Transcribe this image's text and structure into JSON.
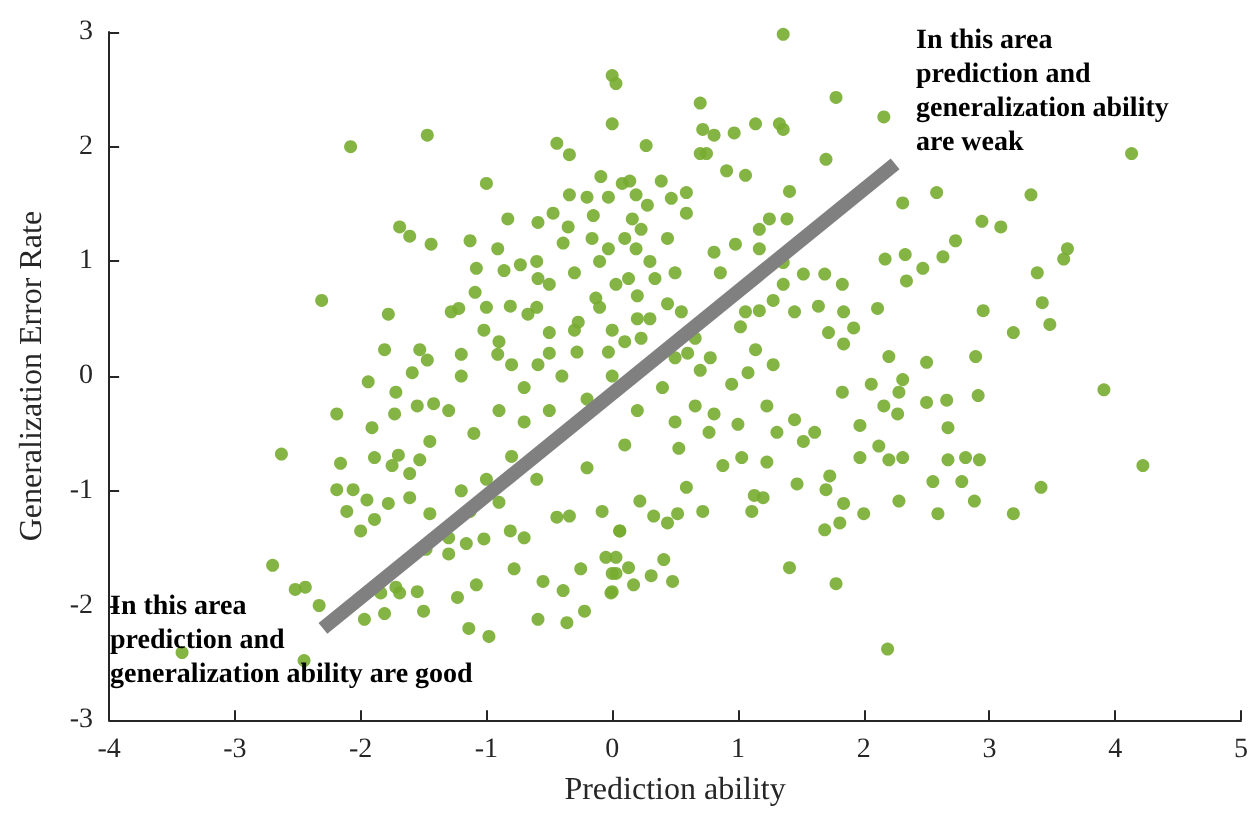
{
  "chart_data": {
    "type": "scatter",
    "xlabel": "Prediction ability",
    "ylabel": "Generalization Error Rate",
    "xlim": [
      -4,
      5
    ],
    "xticks": [
      -4,
      -3,
      -2,
      -1,
      0,
      1,
      2,
      3,
      4,
      5
    ],
    "ylim": [
      -3,
      3
    ],
    "yticks": [
      -3,
      -2,
      -1,
      0,
      1,
      2,
      3
    ],
    "marker": "circle",
    "annotations": [
      "In this area\nprediction and\ngeneralization ability\nare weak",
      "In this area\nprediction and\ngeneralization ability are good"
    ],
    "series": [
      {
        "color": "#77ac30",
        "x": [
          -2.08,
          -1.47,
          -2.31,
          0,
          0.03,
          0,
          1.36,
          -0.44,
          4.13,
          2.16,
          2.31,
          2.58,
          3.33,
          2.94,
          3.09,
          3.62,
          3.59,
          3.38,
          3.42,
          3.48,
          3.19,
          2.95,
          2.73,
          2.63,
          2.33,
          2.17,
          2.47,
          2.34,
          2.11,
          2.2,
          2.5,
          2.89,
          3.91,
          4.22,
          3.41,
          3.19,
          2.88,
          2.59,
          2.78,
          2.55,
          2.67,
          2.92,
          2.81,
          2.67,
          2.66,
          2.5,
          2.91,
          2.31,
          2.28,
          2.27,
          2.16,
          2.06,
          1.97,
          2.12,
          1.97,
          2.2,
          2.31,
          2.28,
          2.0,
          1.83,
          1.84,
          1.81,
          1.69,
          1.73,
          1.7,
          1.47,
          1.61,
          1.52,
          1.45,
          1.31,
          1.23,
          1.23,
          1.13,
          1.2,
          1.11,
          1.08,
          0.95,
          1.0,
          1.03,
          0.88,
          0.77,
          0.81,
          0.66,
          0.53,
          0.59,
          0.72,
          0.52,
          0.44,
          0.33,
          0.22,
          0.06,
          1.41,
          1.78,
          2.19,
          0.41,
          0.48,
          0.31,
          0.17,
          0.13,
          -0.01,
          -0.05,
          0.03,
          -2.63,
          -2.7,
          -2.52,
          -2.44,
          -2.33,
          -3.42,
          -2.45,
          -2.19,
          -2.16,
          -2.19,
          -2.11,
          -2.0,
          -2.06,
          -1.95,
          -1.89,
          -1.94,
          -1.91,
          -1.89,
          -1.78,
          -1.97,
          -1.81,
          -1.84,
          -1.72,
          -1.69,
          -1.5,
          -1.55,
          -1.72,
          -1.73,
          -1.7,
          -1.75,
          -1.61,
          -1.61,
          -1.55,
          -1.42,
          -1.59,
          -1.53,
          -1.45,
          -1.45,
          -1.3,
          -1.3,
          -1.48,
          -1.13,
          -1.16,
          -1.23,
          -1.14,
          -0.98,
          -1.08,
          -1.02,
          -0.81,
          -0.78,
          -0.7,
          -0.59,
          -0.55,
          -0.39,
          -0.36,
          -0.22,
          -0.25,
          -0.44,
          -0.34,
          0,
          0,
          0.03,
          -0.08,
          0.06,
          -1.69,
          -1.61,
          -1.44,
          -1.78,
          -1.81,
          -1.53,
          -1.47,
          -1.0,
          -0.83,
          -1.13,
          -0.91,
          -1.08,
          -0.86,
          -0.73,
          -1.28,
          -1.22,
          -1.02,
          -1.09,
          -1.2,
          -0.59,
          -0.47,
          -0.34,
          -0.2,
          -0.09,
          0.08,
          0.14,
          0.27,
          0.39,
          -0.03,
          0.19,
          0.28,
          -0.34,
          -0.39,
          -0.16,
          -0.03,
          0.19,
          -0.5,
          -0.59,
          -0.67,
          -0.5,
          -0.27,
          -0.13,
          0.03,
          0.2,
          0.34,
          0.44,
          -0.28,
          -0.59,
          -0.91,
          -0.81,
          -0.03,
          0.7,
          0.72,
          0.81,
          0.97,
          1.14,
          1.33,
          1.36,
          1.78,
          0.7,
          0.75,
          1.7,
          1.41,
          0.91,
          1.06,
          1.25,
          1.39,
          1.17,
          1.17,
          0.98,
          0.81,
          0.86,
          1.36,
          1.52,
          1.69,
          1.83,
          1.36,
          1.28,
          1.45,
          1.17,
          1.06,
          1.64,
          1.84,
          1.92,
          1.72,
          1.84,
          1.02,
          1.14,
          1.28,
          0.7,
          0.78,
          0.59,
          0.47,
          0.59,
          0.16,
          0.23,
          0.44,
          0.13,
          0.55,
          0.23,
          0.66,
          0.5,
          -0.9,
          -0.7,
          -0.5,
          -0.3,
          -0.1,
          0.1,
          0.3,
          0.5,
          -1.1,
          -0.8,
          -0.6,
          -0.2,
          0,
          0.2,
          0.4,
          -1.2,
          -1.0,
          -0.5,
          -0.3,
          -0.1,
          0.3,
          -0.6,
          -0.9,
          -1.3,
          0.6,
          -0.2,
          0.1,
          -0.7,
          -0.4,
          0.2,
          0,
          -0.8,
          -1.0,
          0.5,
          -0.35,
          -0.15,
          0.1,
          -0.6,
          -1.2,
          -0.9
        ],
        "values": [
          2.0,
          2.1,
          0.66,
          2.62,
          2.55,
          2.2,
          2.98,
          2.03,
          1.94,
          2.26,
          1.51,
          1.6,
          1.58,
          1.35,
          1.3,
          1.11,
          1.02,
          0.9,
          0.64,
          0.45,
          0.38,
          0.57,
          1.18,
          1.04,
          1.06,
          1.02,
          0.94,
          0.83,
          0.59,
          0.17,
          0.12,
          0.17,
          -0.12,
          -0.78,
          -0.97,
          -1.2,
          -1.09,
          -1.2,
          -0.92,
          -0.92,
          -0.73,
          -0.73,
          -0.71,
          -0.45,
          -0.21,
          -0.23,
          -0.17,
          -0.03,
          -0.14,
          -0.33,
          -0.26,
          -0.07,
          -0.43,
          -0.61,
          -0.71,
          -0.73,
          -0.71,
          -1.09,
          -1.2,
          -0.14,
          -1.11,
          -1.28,
          -1.34,
          -0.87,
          -0.99,
          -0.94,
          -0.49,
          -0.57,
          -0.38,
          -0.49,
          -0.26,
          -0.75,
          -1.04,
          -1.06,
          -1.18,
          0.03,
          -0.07,
          -0.42,
          -0.71,
          -0.78,
          -0.49,
          -0.33,
          -0.26,
          -0.63,
          -0.97,
          -1.18,
          -1.2,
          -1.28,
          -1.22,
          -1.09,
          -1.35,
          -1.67,
          -1.81,
          -2.38,
          -1.6,
          -1.79,
          -1.74,
          -1.82,
          -1.67,
          -1.89,
          -1.58,
          -1.72,
          -0.68,
          -1.65,
          -1.86,
          -1.84,
          -2.0,
          -2.41,
          -2.48,
          -0.33,
          -0.76,
          -0.99,
          -1.18,
          -1.35,
          -0.99,
          -1.08,
          -1.25,
          -0.05,
          -0.45,
          -0.71,
          -1.11,
          -2.12,
          -2.07,
          -1.89,
          -1.84,
          -1.89,
          -2.05,
          -1.88,
          -0.14,
          -0.33,
          -0.69,
          -0.78,
          -0.85,
          -1.06,
          -0.26,
          -0.24,
          0.03,
          -0.73,
          -0.57,
          -1.2,
          -1.55,
          -1.41,
          -1.51,
          -1.18,
          -1.46,
          -1.93,
          -2.2,
          -2.27,
          -1.82,
          -1.42,
          -1.35,
          -1.68,
          -1.41,
          -2.12,
          -1.79,
          -1.87,
          -2.15,
          -2.05,
          -1.68,
          -1.23,
          -1.22,
          -1.88,
          -1.72,
          -1.58,
          -1.18,
          -1.35,
          1.3,
          1.22,
          1.15,
          0.54,
          0.23,
          0.23,
          0.14,
          1.68,
          1.37,
          1.18,
          1.11,
          0.94,
          0.92,
          0.97,
          0.56,
          0.59,
          0.4,
          0.73,
          0.19,
          1.34,
          1.42,
          1.58,
          1.56,
          1.74,
          1.68,
          1.7,
          2.01,
          1.7,
          1.56,
          1.58,
          1.49,
          1.93,
          1.16,
          1.2,
          1.11,
          1.11,
          0.8,
          0.85,
          0.54,
          0.38,
          0.47,
          0.68,
          0.8,
          0.5,
          0.85,
          0.63,
          0.21,
          0.1,
          0.19,
          0.61,
          0.21,
          2.38,
          2.15,
          2.1,
          2.12,
          2.2,
          2.2,
          2.15,
          2.43,
          1.94,
          1.94,
          1.89,
          1.61,
          1.79,
          1.75,
          1.37,
          1.37,
          1.28,
          1.11,
          1.15,
          1.08,
          0.9,
          0.99,
          0.89,
          0.89,
          0.8,
          0.8,
          0.66,
          0.56,
          0.57,
          0.56,
          0.61,
          0.56,
          0.42,
          0.38,
          0.28,
          0.43,
          0.23,
          0.1,
          0.05,
          0.16,
          1.6,
          1.55,
          1.42,
          1.37,
          1.28,
          1.2,
          0.85,
          0.56,
          0.33,
          0.33,
          0.16,
          -0.3,
          -0.1,
          0.2,
          0.4,
          0.6,
          0.3,
          0.5,
          0.9,
          -0.5,
          -0.7,
          -0.9,
          -0.2,
          0,
          -0.3,
          -0.1,
          0.0,
          -0.9,
          -0.3,
          0.9,
          1.0,
          1.0,
          0.6,
          0.3,
          -0.3,
          0.2,
          -0.8,
          -0.6,
          -0.4,
          0.0,
          0.7,
          0.4,
          0.1,
          0.6,
          -0.4,
          1.3,
          1.4,
          1.2,
          1.0,
          -1.0,
          -1.1
        ]
      },
      {
        "type": "line",
        "color": "#808080",
        "marker": "none",
        "x": [
          -2.3,
          2.25
        ],
        "values": [
          -2.2,
          1.85
        ]
      }
    ]
  }
}
